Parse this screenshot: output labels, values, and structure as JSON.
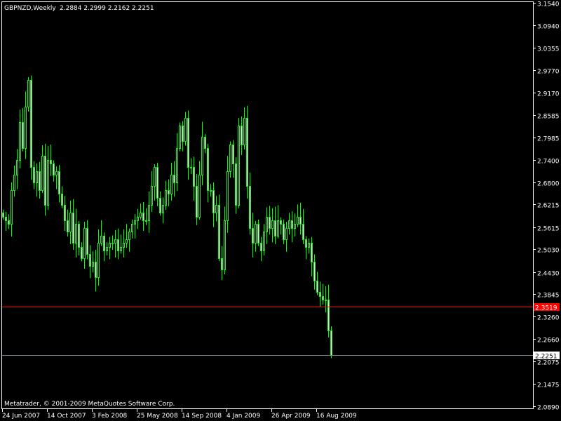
{
  "header": {
    "symbol": "GBPNZD,Weekly",
    "ohlc_text": "2.2884 2.2999 2.2162 2.2251"
  },
  "footer": {
    "copyright": "Metatrader, © 2001-2009 MetaQuotes Software Corp."
  },
  "colors": {
    "background": "#000000",
    "candle_outline": "#00ff00",
    "bull_body": "#000000",
    "bear_body": "#ffffff",
    "axis": "#ffffff",
    "level_line": "#ff0000",
    "bid_line": "#778899"
  },
  "chart_data": {
    "type": "candlestick",
    "timeframe": "Weekly",
    "ylim": [
      2.089,
      3.154
    ],
    "y_ticks": [
      "3.1540",
      "3.0940",
      "3.0355",
      "2.9770",
      "2.9170",
      "2.8585",
      "2.7985",
      "2.7400",
      "2.6800",
      "2.6215",
      "2.5615",
      "2.5030",
      "2.4430",
      "2.3845",
      "2.3260",
      "2.2660",
      "2.2075",
      "2.1475",
      "2.0890"
    ],
    "x_ticks": [
      "24 Jun 2007",
      "14 Oct 2007",
      "3 Feb 2008",
      "25 May 2008",
      "14 Sep 2008",
      "4 Jan 2009",
      "26 Apr 2009",
      "16 Aug 2009"
    ],
    "first_open": 2.6,
    "closes": [
      2.59,
      2.58,
      2.57,
      2.66,
      2.7,
      2.74,
      2.84,
      2.77,
      2.88,
      2.95,
      2.72,
      2.68,
      2.71,
      2.66,
      2.75,
      2.62,
      2.74,
      2.73,
      2.7,
      2.71,
      2.65,
      2.62,
      2.58,
      2.55,
      2.6,
      2.52,
      2.57,
      2.51,
      2.48,
      2.56,
      2.49,
      2.46,
      2.47,
      2.43,
      2.52,
      2.54,
      2.5,
      2.51,
      2.52,
      2.52,
      2.53,
      2.5,
      2.51,
      2.52,
      2.53,
      2.55,
      2.57,
      2.58,
      2.59,
      2.6,
      2.58,
      2.58,
      2.62,
      2.67,
      2.72,
      2.64,
      2.6,
      2.62,
      2.66,
      2.65,
      2.7,
      2.68,
      2.77,
      2.83,
      2.79,
      2.85,
      2.72,
      2.72,
      2.67,
      2.59,
      2.7,
      2.8,
      2.77,
      2.66,
      2.66,
      2.6,
      2.62,
      2.48,
      2.45,
      2.58,
      2.71,
      2.78,
      2.73,
      2.62,
      2.83,
      2.78,
      2.85,
      2.67,
      2.56,
      2.52,
      2.57,
      2.52,
      2.5,
      2.55,
      2.59,
      2.56,
      2.58,
      2.54,
      2.58,
      2.57,
      2.53,
      2.56,
      2.58,
      2.56,
      2.57,
      2.59,
      2.57,
      2.53,
      2.51,
      2.52,
      2.47,
      2.42,
      2.39,
      2.38,
      2.37,
      2.37,
      2.2884,
      2.2251
    ],
    "last_candle": {
      "open": 2.2884,
      "high": 2.2999,
      "low": 2.2162,
      "close": 2.2251
    },
    "level_line": {
      "value": 2.3519,
      "label": "2.3519"
    },
    "bid_line": {
      "value": 2.2251,
      "label": "2.2251"
    }
  }
}
